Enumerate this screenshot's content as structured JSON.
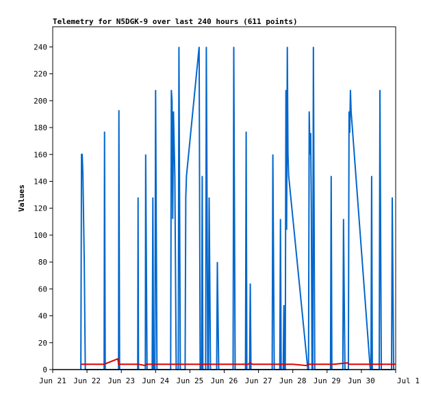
{
  "chart_data": {
    "type": "line",
    "title": "Telemetry for N5DGK-9 over last 240 hours (611 points)",
    "xlabel": "",
    "ylabel": "Values",
    "x_tick_labels": [
      "Jun 21",
      "Jun 22",
      "Jun 23",
      "Jun 24",
      "Jun 25",
      "Jun 26",
      "Jun 27",
      "Jun 28",
      "Jun 29",
      "Jun 30",
      "Jul 1"
    ],
    "xlim_days": [
      0,
      10
    ],
    "ylim": [
      0,
      255
    ],
    "y_ticks": [
      0,
      20,
      40,
      60,
      80,
      100,
      120,
      140,
      160,
      180,
      200,
      220,
      240
    ],
    "grid": false,
    "legend": "none",
    "colors": {
      "primary": "#0066cc",
      "secondary": "#dd0000",
      "baseline": "#000000"
    },
    "series": [
      {
        "color": "#0066cc",
        "points": [
          [
            0.82,
            0
          ],
          [
            0.84,
            160
          ],
          [
            0.86,
            160
          ],
          [
            0.88,
            145
          ],
          [
            0.92,
            80
          ],
          [
            0.95,
            0
          ],
          [
            1.5,
            0
          ],
          [
            1.51,
            177
          ],
          [
            1.52,
            88
          ],
          [
            1.53,
            0
          ],
          [
            1.92,
            0
          ],
          [
            1.93,
            193
          ],
          [
            1.94,
            96
          ],
          [
            1.95,
            0
          ],
          [
            2.48,
            0
          ],
          [
            2.49,
            128
          ],
          [
            2.5,
            0
          ],
          [
            2.7,
            0
          ],
          [
            2.71,
            160
          ],
          [
            2.73,
            80
          ],
          [
            2.75,
            0
          ],
          [
            2.9,
            0
          ],
          [
            2.92,
            128
          ],
          [
            2.94,
            0
          ],
          [
            2.98,
            0
          ],
          [
            3.0,
            208
          ],
          [
            3.02,
            104
          ],
          [
            3.04,
            0
          ],
          [
            3.44,
            0
          ],
          [
            3.46,
            208
          ],
          [
            3.48,
            200
          ],
          [
            3.5,
            112
          ],
          [
            3.52,
            192
          ],
          [
            3.56,
            144
          ],
          [
            3.6,
            0
          ],
          [
            3.66,
            0
          ],
          [
            3.68,
            240
          ],
          [
            3.7,
            120
          ],
          [
            3.72,
            0
          ],
          [
            3.86,
            0
          ],
          [
            3.88,
            128
          ],
          [
            3.9,
            144
          ],
          [
            4.27,
            240
          ],
          [
            4.3,
            0
          ],
          [
            4.34,
            0
          ],
          [
            4.36,
            144
          ],
          [
            4.38,
            0
          ],
          [
            4.46,
            0
          ],
          [
            4.48,
            240
          ],
          [
            4.5,
            120
          ],
          [
            4.52,
            0
          ],
          [
            4.54,
            0
          ],
          [
            4.56,
            128
          ],
          [
            4.58,
            64
          ],
          [
            4.6,
            0
          ],
          [
            4.78,
            0
          ],
          [
            4.8,
            80
          ],
          [
            4.82,
            40
          ],
          [
            4.84,
            0
          ],
          [
            5.26,
            0
          ],
          [
            5.28,
            240
          ],
          [
            5.3,
            120
          ],
          [
            5.32,
            0
          ],
          [
            5.62,
            0
          ],
          [
            5.64,
            177
          ],
          [
            5.66,
            0
          ],
          [
            5.74,
            0
          ],
          [
            5.76,
            64
          ],
          [
            5.78,
            0
          ],
          [
            6.4,
            0
          ],
          [
            6.42,
            160
          ],
          [
            6.44,
            80
          ],
          [
            6.46,
            0
          ],
          [
            6.62,
            0
          ],
          [
            6.64,
            112
          ],
          [
            6.66,
            0
          ],
          [
            6.72,
            0
          ],
          [
            6.74,
            48
          ],
          [
            6.76,
            0
          ],
          [
            6.78,
            0
          ],
          [
            6.8,
            208
          ],
          [
            6.82,
            104
          ],
          [
            6.84,
            240
          ],
          [
            6.86,
            160
          ],
          [
            6.88,
            144
          ],
          [
            7.44,
            0
          ],
          [
            7.46,
            0
          ],
          [
            7.48,
            192
          ],
          [
            7.5,
            160
          ],
          [
            7.52,
            176
          ],
          [
            7.54,
            120
          ],
          [
            7.56,
            0
          ],
          [
            7.58,
            0
          ],
          [
            7.6,
            240
          ],
          [
            7.62,
            120
          ],
          [
            7.64,
            0
          ],
          [
            8.1,
            0
          ],
          [
            8.12,
            144
          ],
          [
            8.14,
            0
          ],
          [
            8.46,
            0
          ],
          [
            8.48,
            112
          ],
          [
            8.5,
            56
          ],
          [
            8.52,
            0
          ],
          [
            8.62,
            0
          ],
          [
            8.64,
            192
          ],
          [
            8.66,
            176
          ],
          [
            8.68,
            208
          ],
          [
            8.7,
            192
          ],
          [
            9.26,
            0
          ],
          [
            9.28,
            0
          ],
          [
            9.3,
            144
          ],
          [
            9.32,
            0
          ],
          [
            9.52,
            0
          ],
          [
            9.54,
            208
          ],
          [
            9.56,
            104
          ],
          [
            9.58,
            0
          ],
          [
            9.88,
            0
          ],
          [
            9.9,
            128
          ],
          [
            9.92,
            64
          ],
          [
            9.94,
            0
          ]
        ]
      },
      {
        "color": "#dd0000",
        "points": [
          [
            0.82,
            4
          ],
          [
            1.5,
            4
          ],
          [
            1.9,
            8
          ],
          [
            1.92,
            4
          ],
          [
            2.5,
            4
          ],
          [
            2.7,
            3
          ],
          [
            2.72,
            4
          ],
          [
            5.7,
            4
          ],
          [
            5.76,
            5
          ],
          [
            5.82,
            4
          ],
          [
            7.0,
            4
          ],
          [
            7.4,
            3
          ],
          [
            7.44,
            4
          ],
          [
            8.2,
            4
          ],
          [
            8.6,
            5
          ],
          [
            8.64,
            4
          ],
          [
            10.0,
            4
          ]
        ]
      }
    ]
  }
}
